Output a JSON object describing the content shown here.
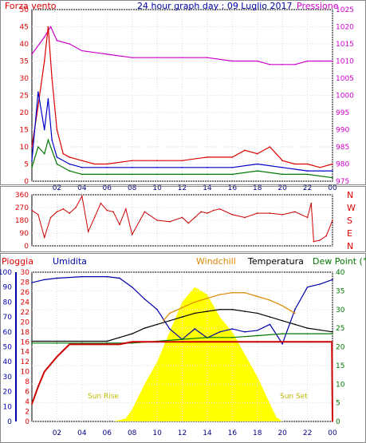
{
  "chart_data": [
    {
      "type": "line",
      "title": "24 hour graph day : 09 Luglio 2017",
      "left_axis_label": "Forza vento",
      "right_axis_label": "Pressione",
      "x_ticks": [
        "02",
        "04",
        "06",
        "08",
        "10",
        "12",
        "14",
        "16",
        "18",
        "20",
        "22",
        "00"
      ],
      "y_left_range": [
        0,
        50
      ],
      "y_left_ticks": [
        "0",
        "5",
        "10",
        "15",
        "20",
        "25",
        "30",
        "35",
        "40",
        "45",
        "50"
      ],
      "y_right_range": [
        975,
        1025
      ],
      "y_right_ticks": [
        "975",
        "980",
        "985",
        "990",
        "995",
        "1000",
        "1005",
        "1010",
        "1015",
        "1020",
        "1025"
      ],
      "grid": true,
      "series": [
        {
          "color": "#cc00cc",
          "x": [
            0,
            1,
            1.5,
            2,
            3,
            4,
            6,
            8,
            10,
            12,
            14,
            16,
            18,
            19,
            20,
            21,
            22,
            23,
            24
          ],
          "values": [
            1012,
            1017,
            1020,
            1016,
            1015,
            1013,
            1012,
            1011,
            1011,
            1011,
            1011,
            1010,
            1010,
            1009,
            1009,
            1009,
            1010,
            1010,
            1010
          ]
        },
        {
          "color": "#dd0000",
          "x": [
            0,
            0.5,
            1,
            1.3,
            1.6,
            2,
            2.5,
            3,
            4,
            5,
            6,
            8,
            10,
            12,
            14,
            16,
            17,
            18,
            19,
            20,
            21,
            22,
            23,
            24
          ],
          "values": [
            10,
            22,
            35,
            45,
            30,
            15,
            8,
            7,
            6,
            5,
            5,
            6,
            6,
            6,
            7,
            7,
            9,
            8,
            10,
            6,
            5,
            5,
            4,
            5
          ]
        },
        {
          "color": "#0000cc",
          "x": [
            0,
            0.5,
            1,
            1.3,
            1.6,
            2,
            3,
            4,
            6,
            8,
            10,
            12,
            14,
            16,
            18,
            20,
            22,
            24
          ],
          "values": [
            6,
            26,
            15,
            24,
            12,
            7,
            5,
            4,
            4,
            4,
            4,
            4,
            4,
            4,
            5,
            4,
            3,
            3
          ]
        },
        {
          "color": "#007700",
          "x": [
            0,
            0.5,
            1,
            1.3,
            2,
            3,
            4,
            6,
            8,
            10,
            12,
            14,
            16,
            18,
            20,
            22,
            24
          ],
          "values": [
            4,
            10,
            8,
            12,
            5,
            3,
            2,
            2,
            2,
            2,
            2,
            2,
            2,
            3,
            2,
            2,
            1
          ]
        }
      ]
    },
    {
      "type": "line",
      "y_range": [
        0,
        360
      ],
      "y_ticks": [
        "0",
        "90",
        "180",
        "270",
        "360"
      ],
      "right_labels": [
        "N",
        "W",
        "S",
        "E",
        "N"
      ],
      "x_ticks": [
        "02",
        "04",
        "06",
        "08",
        "10",
        "12",
        "14",
        "16",
        "18",
        "20",
        "22",
        "00"
      ],
      "series": [
        {
          "color": "#cc0000",
          "x": [
            0,
            0.5,
            1,
            1.5,
            2,
            2.5,
            3,
            3.5,
            4,
            4.5,
            5,
            5.5,
            6,
            6.5,
            7,
            7.5,
            8,
            9,
            10,
            11,
            12,
            12.5,
            13,
            13.5,
            14,
            14.5,
            15,
            16,
            17,
            18,
            19,
            20,
            21,
            22,
            22.3,
            22.5,
            23,
            23.5,
            24
          ],
          "values": [
            250,
            220,
            60,
            200,
            240,
            260,
            230,
            270,
            350,
            100,
            200,
            300,
            250,
            240,
            150,
            260,
            80,
            240,
            180,
            170,
            200,
            160,
            200,
            240,
            230,
            250,
            260,
            220,
            200,
            230,
            230,
            220,
            240,
            200,
            300,
            30,
            40,
            70,
            180
          ]
        }
      ]
    },
    {
      "type": "line",
      "left_axis_label": "Pioggia",
      "humidity_label": "Umidita",
      "legend": [
        "Windchill",
        "Temperatura",
        "Dew Point (°C"
      ],
      "annotations": [
        "Sun Rise",
        "Sun Set"
      ],
      "x_ticks": [
        "02",
        "04",
        "06",
        "08",
        "10",
        "12",
        "14",
        "16",
        "18",
        "20",
        "22",
        "00"
      ],
      "y_humidity_range": [
        0,
        100
      ],
      "y_humidity_ticks": [
        "0",
        "10",
        "20",
        "30",
        "40",
        "50",
        "60",
        "70",
        "80",
        "90",
        "100"
      ],
      "y_rain_range": [
        0,
        30
      ],
      "y_rain_ticks": [
        "0",
        "2",
        "4",
        "6",
        "8",
        "10",
        "12",
        "14",
        "16",
        "18",
        "20",
        "22",
        "24",
        "26",
        "28",
        "30"
      ],
      "y_temp_range": [
        0,
        40
      ],
      "y_temp_ticks": [
        "0",
        "5",
        "10",
        "15",
        "20",
        "25",
        "30",
        "35",
        "40"
      ],
      "grid": true,
      "series": [
        {
          "name": "Umidita",
          "color": "#0000aa",
          "x": [
            0,
            1,
            2,
            4,
            6,
            7,
            8,
            9,
            10,
            11,
            12,
            13,
            14,
            15,
            16,
            17,
            18,
            19,
            20,
            21,
            22,
            23,
            24
          ],
          "values": [
            93,
            95,
            96,
            97,
            97,
            96,
            90,
            82,
            75,
            62,
            55,
            62,
            56,
            60,
            62,
            60,
            61,
            65,
            52,
            75,
            90,
            92,
            95
          ]
        },
        {
          "name": "Windchill",
          "color": "#dd8800",
          "x": [
            10.5,
            11,
            12,
            13,
            14,
            15,
            16,
            17,
            18,
            19,
            20,
            21
          ],
          "values": [
            27,
            29,
            30.5,
            32,
            33,
            34,
            34.5,
            34.5,
            33.5,
            32.5,
            31,
            29
          ]
        },
        {
          "name": "Temperatura",
          "color": "#000000",
          "x": [
            0,
            2,
            4,
            6,
            7,
            8,
            9,
            10,
            11,
            12,
            13,
            14,
            15,
            16,
            17,
            18,
            19,
            20,
            21,
            22,
            23,
            24
          ],
          "values": [
            21.5,
            21.5,
            21.5,
            21.5,
            22.5,
            23.5,
            25,
            26,
            27,
            28,
            29,
            29.5,
            30,
            30,
            29.5,
            29,
            28,
            27,
            26,
            25,
            24.5,
            24
          ]
        },
        {
          "name": "Dew Point",
          "color": "#007700",
          "x": [
            0,
            2,
            4,
            6,
            8,
            10,
            12,
            14,
            16,
            18,
            20,
            22,
            24
          ],
          "values": [
            21,
            21,
            21,
            21,
            21,
            21.5,
            22,
            22.5,
            22.5,
            23,
            23.5,
            23.5,
            23.5
          ]
        },
        {
          "name": "Pioggia",
          "color": "#cc0000",
          "x": [
            0,
            0.5,
            1,
            2,
            2.8,
            3,
            5,
            7,
            8,
            10,
            12,
            14,
            16,
            18,
            20,
            22,
            23.95,
            24
          ],
          "values": [
            3.5,
            7,
            10,
            13,
            15,
            15.5,
            15.5,
            15.5,
            16,
            16,
            16,
            16,
            16,
            16,
            16,
            16,
            16,
            0
          ]
        }
      ],
      "solar_radiation_curve": {
        "color": "#ffff00",
        "x": [
          6.5,
          7.5,
          8,
          9,
          10,
          11,
          12,
          13,
          14,
          15,
          16,
          17,
          18,
          19,
          19.5,
          20
        ],
        "values": [
          0,
          2,
          8,
          25,
          40,
          60,
          80,
          90,
          85,
          70,
          60,
          45,
          30,
          12,
          3,
          0
        ]
      }
    }
  ]
}
